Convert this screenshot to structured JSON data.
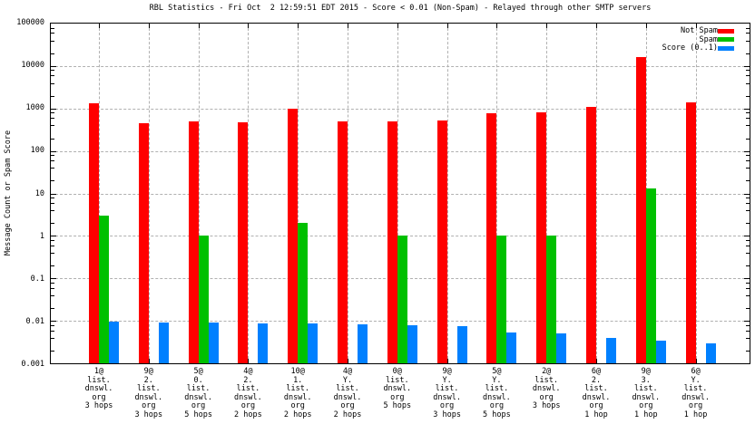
{
  "chart_data": {
    "type": "bar",
    "title": "RBL Statistics - Fri Oct  2 12:59:51 EDT 2015 - Score < 0.01 (Non-Spam) - Relayed through other SMTP servers",
    "ylabel": "Message Count or Spam Score",
    "y_scale": "log",
    "ylim": [
      0.001,
      100000
    ],
    "y_tick_labels": [
      "100000",
      "10000",
      "1000",
      "100",
      "10",
      "1",
      "0.1",
      "0.01",
      "0.001"
    ],
    "grid": "dashed, major x and y",
    "legend_position": "top-right-inside",
    "categories": [
      [
        "1@",
        "list.",
        "dnswl.",
        "org",
        "3 hops"
      ],
      [
        "9@",
        "2.",
        "list.",
        "dnswl.",
        "org",
        "3 hops"
      ],
      [
        "5@",
        "0.",
        "list.",
        "dnswl.",
        "org",
        "5 hops"
      ],
      [
        "4@",
        "2.",
        "list.",
        "dnswl.",
        "org",
        "2 hops"
      ],
      [
        "10@",
        "1.",
        "list.",
        "dnswl.",
        "org",
        "2 hops"
      ],
      [
        "4@",
        "Y.",
        "list.",
        "dnswl.",
        "org",
        "2 hops"
      ],
      [
        "0@",
        "list.",
        "dnswl.",
        "org",
        "5 hops"
      ],
      [
        "9@",
        "Y.",
        "list.",
        "dnswl.",
        "org",
        "3 hops"
      ],
      [
        "5@",
        "Y.",
        "list.",
        "dnswl.",
        "org",
        "5 hops"
      ],
      [
        "2@",
        "list.",
        "dnswl.",
        "org",
        "3 hops"
      ],
      [
        "6@",
        "2.",
        "list.",
        "dnswl.",
        "org",
        "1 hop"
      ],
      [
        "9@",
        "3.",
        "list.",
        "dnswl.",
        "org",
        "1 hop"
      ],
      [
        "6@",
        "Y.",
        "list.",
        "dnswl.",
        "org",
        "1 hop"
      ]
    ],
    "series": [
      {
        "name": "Not Spam",
        "color": "#ff0000",
        "values": [
          1300,
          450,
          490,
          470,
          1000,
          500,
          500,
          520,
          780,
          810,
          1070,
          16500,
          1400
        ]
      },
      {
        "name": "Spam",
        "color": "#00c000",
        "values": [
          3,
          null,
          1,
          null,
          2,
          null,
          1,
          null,
          1,
          1,
          null,
          13,
          null
        ]
      },
      {
        "name": "Score (0..1)",
        "color": "#0080ff",
        "values": [
          0.0095,
          0.009,
          0.009,
          0.0088,
          0.0085,
          0.0082,
          0.0078,
          0.0075,
          0.0053,
          0.005,
          0.004,
          0.0034,
          0.003
        ]
      }
    ]
  },
  "colors": {
    "background": "#ffffff",
    "axis": "#000000",
    "grid": "#b0b0b0",
    "not_spam": "#ff0000",
    "spam": "#00c000",
    "score": "#0080ff"
  }
}
